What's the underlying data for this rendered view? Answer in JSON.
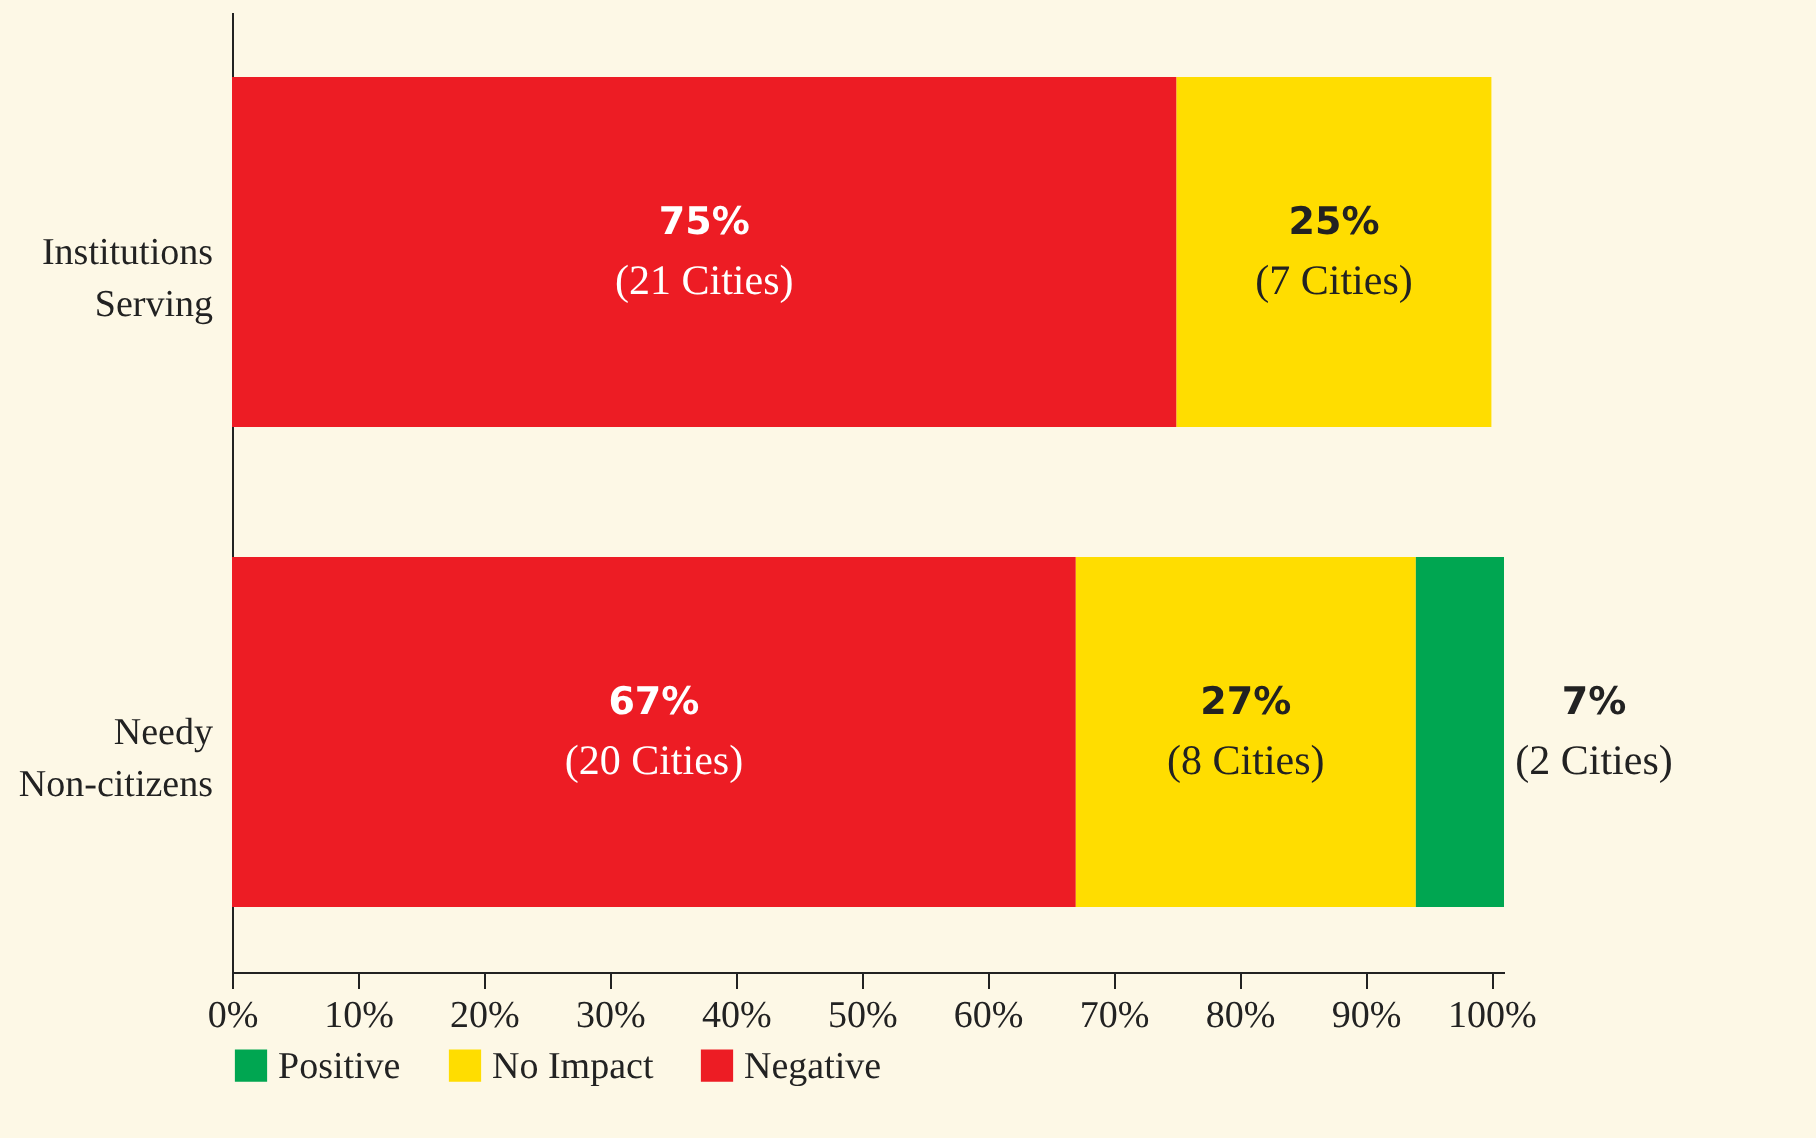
{
  "chart_data": {
    "type": "bar",
    "orientation": "horizontal",
    "stacked": true,
    "categories": [
      "Institutions Serving",
      "Needy Non-citizens"
    ],
    "series": [
      {
        "name": "Negative",
        "color": "#ed1c24",
        "values": [
          75,
          67
        ],
        "value_labels": [
          "75%\n(21 Cities)",
          "67%\n(20 Cities)"
        ]
      },
      {
        "name": "No Impact",
        "color": "#ffdd00",
        "values": [
          25,
          27
        ],
        "value_labels": [
          "25%\n(7 Cities)",
          "27%\n(8 Cities)"
        ]
      },
      {
        "name": "Positive",
        "color": "#00a651",
        "values": [
          null,
          7
        ],
        "value_labels": [
          null,
          "7%\n(2 Cities)"
        ]
      }
    ],
    "xlim": [
      0,
      101
    ],
    "xticks": [
      {
        "value": 0,
        "label": "0%"
      },
      {
        "value": 10,
        "label": "10%"
      },
      {
        "value": 20,
        "label": "20%"
      },
      {
        "value": 30,
        "label": "30%"
      },
      {
        "value": 40,
        "label": "40%"
      },
      {
        "value": 50,
        "label": "50%"
      },
      {
        "value": 60,
        "label": "60%"
      },
      {
        "value": 70,
        "label": "70%"
      },
      {
        "value": 80,
        "label": "80%"
      },
      {
        "value": 90,
        "label": "90%"
      },
      {
        "value": 100,
        "label": "100%"
      }
    ],
    "grid": false,
    "legend": "bottom left"
  }
}
